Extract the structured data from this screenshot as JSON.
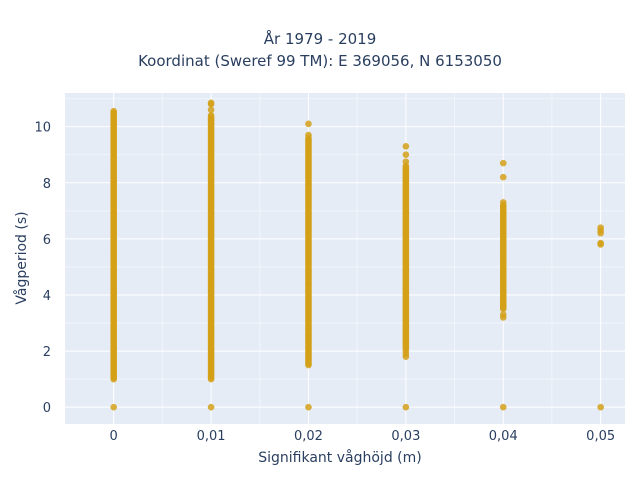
{
  "chart_data": {
    "type": "scatter",
    "title_lines": [
      "År 1979 - 2019",
      "Koordinat (Sweref 99 TM): E 369056, N 6153050"
    ],
    "xlabel": "Signifikant våghöjd (m)",
    "ylabel": "Vågperiod (s)",
    "xlim": [
      -0.005,
      0.0525
    ],
    "ylim": [
      -0.6,
      11.2
    ],
    "x_ticks": [
      0,
      0.01,
      0.02,
      0.03,
      0.04,
      0.05
    ],
    "x_tick_labels": [
      "0",
      "0,01",
      "0,02",
      "0,03",
      "0,04",
      "0,05"
    ],
    "y_ticks": [
      0,
      2,
      4,
      6,
      8,
      10
    ],
    "y_tick_labels": [
      "0",
      "2",
      "4",
      "6",
      "8",
      "10"
    ],
    "grid": true,
    "background": "#e5ecf6",
    "marker_color": "#d4a017",
    "series": [
      {
        "x_groups": [
          {
            "x": 0,
            "y_min": 1.0,
            "y_max": 10.55,
            "extra_y": [
              0
            ]
          },
          {
            "x": 0.01,
            "y_min": 1.0,
            "y_max": 10.4,
            "extra_y": [
              0,
              10.6,
              10.8,
              10.85
            ]
          },
          {
            "x": 0.02,
            "y_min": 1.5,
            "y_max": 9.6,
            "extra_y": [
              0,
              9.7,
              10.1
            ]
          },
          {
            "x": 0.03,
            "y_min": 2.1,
            "y_max": 8.6,
            "extra_y": [
              0,
              1.8,
              1.9,
              2.0,
              8.75,
              9.0,
              9.3
            ]
          },
          {
            "x": 0.04,
            "y_min": 3.5,
            "y_max": 7.2,
            "extra_y": [
              0,
              3.2,
              3.3,
              7.3,
              8.2,
              8.7
            ]
          },
          {
            "x": 0.05,
            "y_min": null,
            "y_max": null,
            "extra_y": [
              0,
              5.8,
              5.85,
              6.2,
              6.3,
              6.4
            ]
          }
        ]
      }
    ]
  }
}
